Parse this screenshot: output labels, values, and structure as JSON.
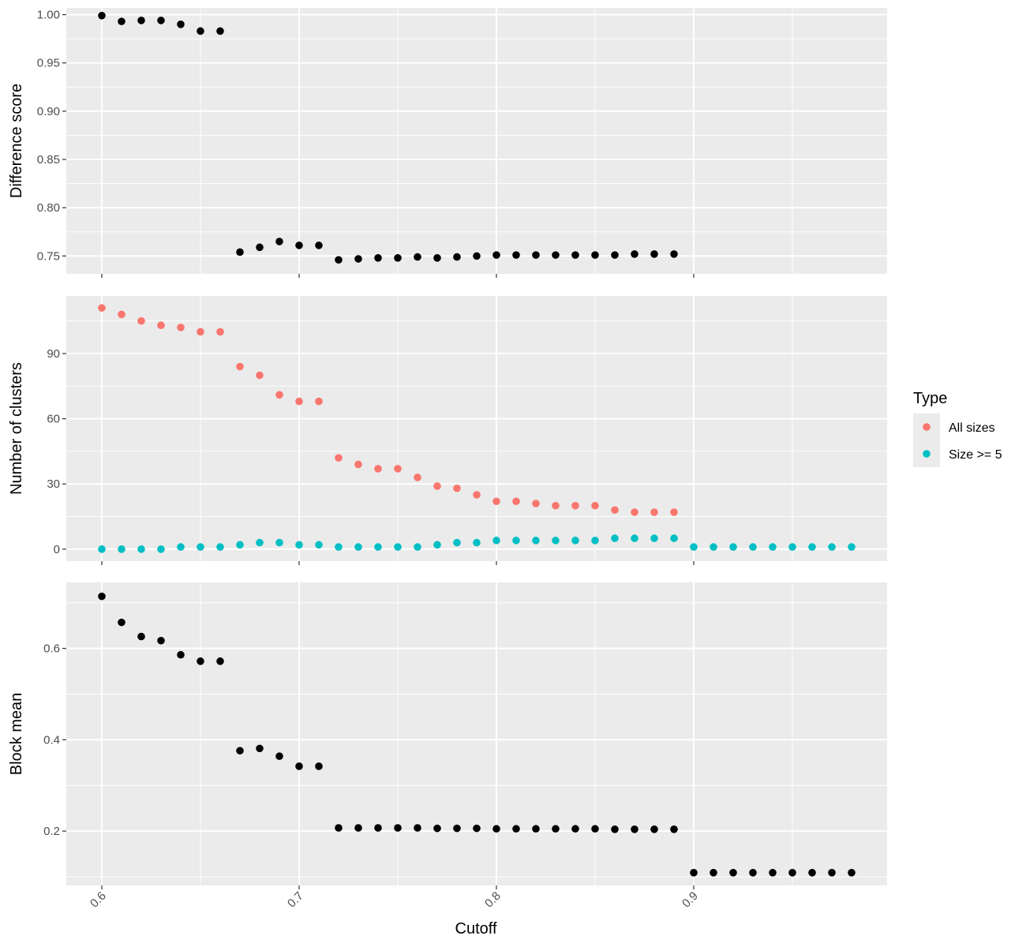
{
  "chart_data": {
    "type": "scatter",
    "facet_layout": "vertical-stack",
    "shared_x": {
      "label": "Cutoff",
      "range": [
        0.582,
        0.998
      ],
      "ticks": [
        0.6,
        0.7,
        0.8,
        0.9
      ],
      "tick_labels": [
        "0.6",
        "0.7",
        "0.8",
        "0.9"
      ],
      "tick_label_rotation": "45deg"
    },
    "grid": true,
    "background": "#EBEBEB",
    "legend": {
      "title": "Type",
      "position": "right",
      "entries": [
        {
          "label": "All sizes",
          "color": "#F8766D"
        },
        {
          "label": "Size >= 5",
          "color": "#00BFC4"
        }
      ]
    },
    "panels": [
      {
        "ylabel": "Difference score",
        "ylim": [
          0.7315,
          1.007
        ],
        "yticks": [
          0.75,
          0.8,
          0.85,
          0.9,
          0.95,
          1.0
        ],
        "ytick_labels": [
          "0.75",
          "0.80",
          "0.85",
          "0.90",
          "0.95",
          "1.00"
        ],
        "series": [
          {
            "color": "#000000",
            "x": [
              0.6,
              0.61,
              0.62,
              0.63,
              0.64,
              0.65,
              0.66,
              0.67,
              0.68,
              0.69,
              0.7,
              0.71,
              0.72,
              0.73,
              0.74,
              0.75,
              0.76,
              0.77,
              0.78,
              0.79,
              0.8,
              0.81,
              0.82,
              0.83,
              0.84,
              0.85,
              0.86,
              0.87,
              0.88,
              0.89
            ],
            "y": [
              0.999,
              0.993,
              0.994,
              0.994,
              0.99,
              0.983,
              0.983,
              0.754,
              0.759,
              0.765,
              0.761,
              0.761,
              0.746,
              0.747,
              0.748,
              0.748,
              0.749,
              0.748,
              0.749,
              0.75,
              0.751,
              0.751,
              0.751,
              0.751,
              0.751,
              0.751,
              0.751,
              0.752,
              0.752,
              0.752
            ]
          }
        ]
      },
      {
        "ylabel": "Number of clusters",
        "ylim": [
          -5.5,
          116.5
        ],
        "yticks": [
          0,
          30,
          60,
          90
        ],
        "ytick_labels": [
          "0",
          "30",
          "60",
          "90"
        ],
        "series": [
          {
            "name": "All sizes",
            "color": "#F8766D",
            "x": [
              0.6,
              0.61,
              0.62,
              0.63,
              0.64,
              0.65,
              0.66,
              0.67,
              0.68,
              0.69,
              0.7,
              0.71,
              0.72,
              0.73,
              0.74,
              0.75,
              0.76,
              0.77,
              0.78,
              0.79,
              0.8,
              0.81,
              0.82,
              0.83,
              0.84,
              0.85,
              0.86,
              0.87,
              0.88,
              0.89
            ],
            "y": [
              111,
              108,
              105,
              103,
              102,
              100,
              100,
              84,
              80,
              71,
              68,
              68,
              42,
              39,
              37,
              37,
              33,
              29,
              28,
              25,
              22,
              22,
              21,
              20,
              20,
              20,
              18,
              17,
              17,
              17
            ]
          },
          {
            "name": "Size >= 5",
            "color": "#00BFC4",
            "x": [
              0.6,
              0.61,
              0.62,
              0.63,
              0.64,
              0.65,
              0.66,
              0.67,
              0.68,
              0.69,
              0.7,
              0.71,
              0.72,
              0.73,
              0.74,
              0.75,
              0.76,
              0.77,
              0.78,
              0.79,
              0.8,
              0.81,
              0.82,
              0.83,
              0.84,
              0.85,
              0.86,
              0.87,
              0.88,
              0.89,
              0.9,
              0.91,
              0.92,
              0.93,
              0.94,
              0.95,
              0.96,
              0.97,
              0.98
            ],
            "y": [
              0,
              0,
              0,
              0,
              1,
              1,
              1,
              2,
              3,
              3,
              2,
              2,
              1,
              1,
              1,
              1,
              1,
              2,
              3,
              3,
              4,
              4,
              4,
              4,
              4,
              4,
              5,
              5,
              5,
              5,
              1,
              1,
              1,
              1,
              1,
              1,
              1,
              1,
              1
            ]
          }
        ]
      },
      {
        "ylabel": "Block mean",
        "ylim": [
          0.081,
          0.7445
        ],
        "yticks": [
          0.2,
          0.4,
          0.6
        ],
        "ytick_labels": [
          "0.2",
          "0.4",
          "0.6"
        ],
        "series": [
          {
            "color": "#000000",
            "x": [
              0.6,
              0.61,
              0.62,
              0.63,
              0.64,
              0.65,
              0.66,
              0.67,
              0.68,
              0.69,
              0.7,
              0.71,
              0.72,
              0.73,
              0.74,
              0.75,
              0.76,
              0.77,
              0.78,
              0.79,
              0.8,
              0.81,
              0.82,
              0.83,
              0.84,
              0.85,
              0.86,
              0.87,
              0.88,
              0.89,
              0.9,
              0.91,
              0.92,
              0.93,
              0.94,
              0.95,
              0.96,
              0.97,
              0.98
            ],
            "y": [
              0.714,
              0.657,
              0.626,
              0.617,
              0.586,
              0.572,
              0.572,
              0.376,
              0.381,
              0.364,
              0.342,
              0.342,
              0.207,
              0.207,
              0.207,
              0.207,
              0.207,
              0.206,
              0.206,
              0.206,
              0.205,
              0.205,
              0.205,
              0.205,
              0.205,
              0.205,
              0.204,
              0.204,
              0.204,
              0.204,
              0.109,
              0.109,
              0.109,
              0.109,
              0.109,
              0.109,
              0.109,
              0.109,
              0.109
            ]
          }
        ]
      }
    ]
  }
}
